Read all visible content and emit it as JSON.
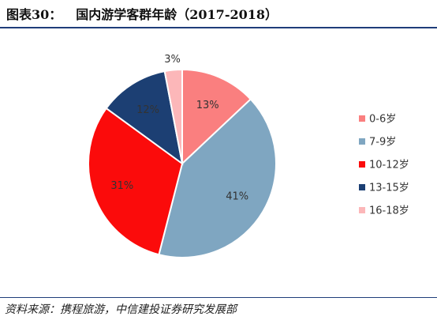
{
  "header": {
    "figure_number": "图表30：",
    "title": "国内游学客群年龄（2017-2018）"
  },
  "chart_data": {
    "type": "pie",
    "title": "国内游学客群年龄（2017-2018）",
    "slices": [
      {
        "label": "0-6岁",
        "value": 13,
        "display": "13%",
        "color": "#fa7f7f"
      },
      {
        "label": "7-9岁",
        "value": 41,
        "display": "41%",
        "color": "#7fa6c1"
      },
      {
        "label": "10-12岁",
        "value": 31,
        "display": "31%",
        "color": "#fb0b0b"
      },
      {
        "label": "13-15岁",
        "value": 12,
        "display": "12%",
        "color": "#1c3f73"
      },
      {
        "label": "16-18岁",
        "value": 3,
        "display": "3%",
        "color": "#fcb7b9"
      }
    ],
    "legend_position": "right"
  },
  "footer": {
    "source": "资料来源：携程旅游，中信建投证券研究发展部"
  }
}
